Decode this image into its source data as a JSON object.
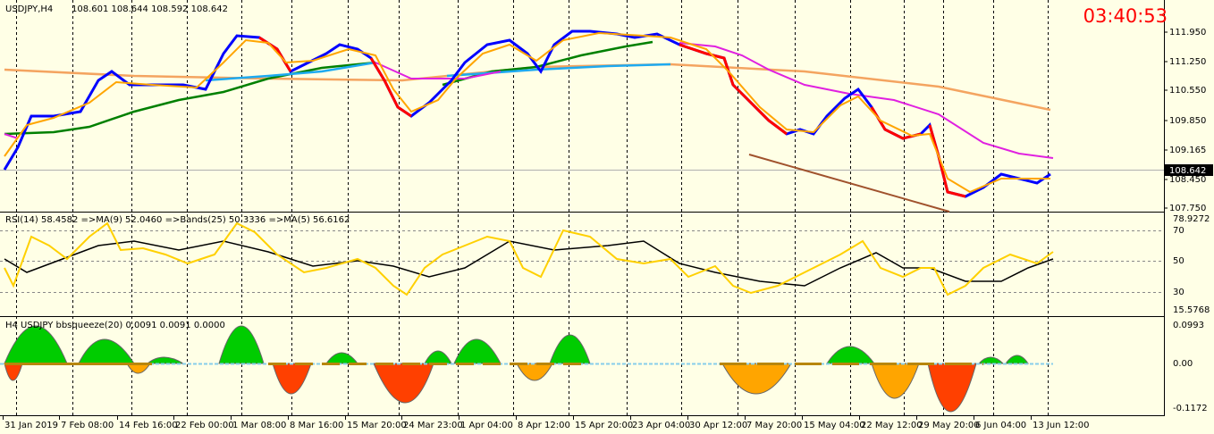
{
  "header": {
    "symbol": "USDJPY,H4",
    "ohlc": "108.601 108.644 108.592 108.642"
  },
  "timer": "03:40:53",
  "price_axis": [
    "111.950",
    "111.250",
    "110.550",
    "109.850",
    "109.165",
    "108.450",
    "107.750"
  ],
  "current_price": "108.642",
  "rsi": {
    "label": "RSI(14) 58.4582  =>MA(9) 52.0460  =>Bands(25) 50.3336  =>MA(5) 56.6162",
    "axis": [
      "78.9272",
      "70",
      "50",
      "30",
      "15.5768"
    ]
  },
  "bbsqueeze": {
    "label": "H4 USDJPY bbsqueeze(20) 0.0091 0.0091 0.0000",
    "axis": [
      "0.0993",
      "0.00",
      "-0.1172"
    ]
  },
  "time_axis": [
    "31 Jan 2019",
    "7 Feb 08:00",
    "14 Feb 16:00",
    "22 Feb 00:00",
    "1 Mar 08:00",
    "8 Mar 16:00",
    "15 Mar 20:00",
    "24 Mar 23:00",
    "1 Apr 04:00",
    "8 Apr 12:00",
    "15 Apr 20:00",
    "23 Apr 04:00",
    "30 Apr 12:00",
    "7 May 20:00",
    "15 May 04:00",
    "22 May 12:00",
    "29 May 20:00",
    "6 Jun 04:00",
    "13 Jun 12:00"
  ]
}
